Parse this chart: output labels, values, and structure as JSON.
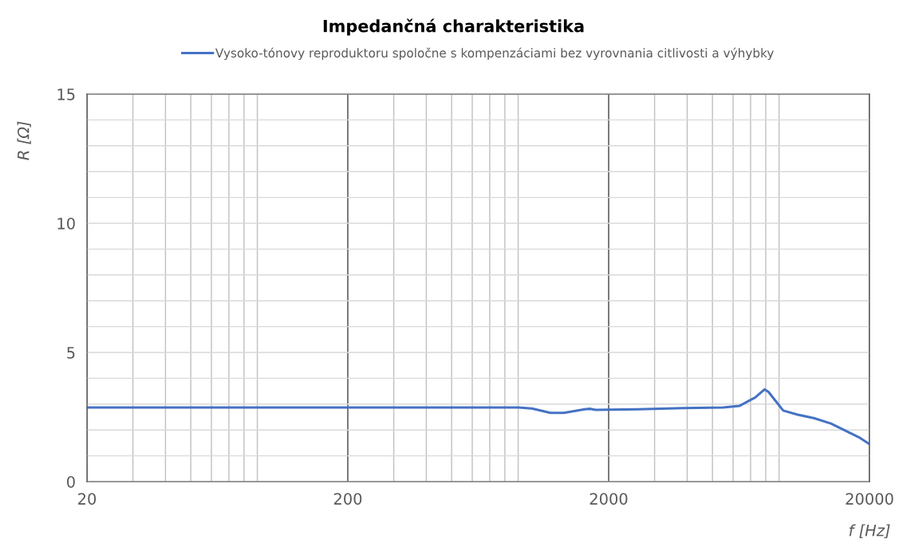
{
  "chart_data": {
    "type": "line",
    "title": "Impedančná charakteristika",
    "xlabel": "f [Hz]",
    "ylabel": "R [Ω]",
    "log": "x",
    "grid": true,
    "legend": "top",
    "marker": "none",
    "line_style": "solid",
    "xlim": [
      20,
      20000
    ],
    "xticks": [
      20,
      200,
      2000,
      20000
    ],
    "ylim": [
      0,
      15
    ],
    "yticks": [
      0,
      5,
      10,
      15
    ],
    "series": [
      {
        "name": "Vysoko-tónovy reproduktoru spoločne s kompenzáciami bez vyrovnania citlivosti a výhybky",
        "color": "#4472c4",
        "x": [
          20,
          100,
          500,
          635,
          902,
          1015,
          1197,
          1346,
          1619,
          1702,
          1784,
          2594,
          3870,
          5498,
          6337,
          7297,
          7914,
          8201,
          9340,
          10610,
          12220,
          14230,
          18210,
          20000
        ],
        "values": [
          2.87,
          2.87,
          2.87,
          2.87,
          2.87,
          2.83,
          2.66,
          2.66,
          2.8,
          2.82,
          2.78,
          2.8,
          2.85,
          2.87,
          2.93,
          3.26,
          3.57,
          3.47,
          2.75,
          2.59,
          2.46,
          2.25,
          1.72,
          1.45
        ]
      }
    ]
  }
}
